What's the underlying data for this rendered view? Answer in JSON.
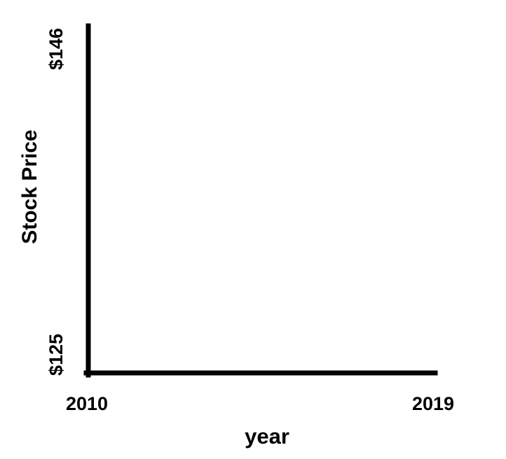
{
  "chart_data": {
    "type": "line",
    "title": "",
    "xlabel": "year",
    "ylabel": "Stock Price",
    "x_ticks": [
      "2010",
      "2019"
    ],
    "y_ticks": [
      "$125",
      "$146"
    ],
    "xlim": [
      2010,
      2019
    ],
    "ylim": [
      125,
      146
    ],
    "grid": false,
    "series": [],
    "axis_color": "#000000"
  }
}
